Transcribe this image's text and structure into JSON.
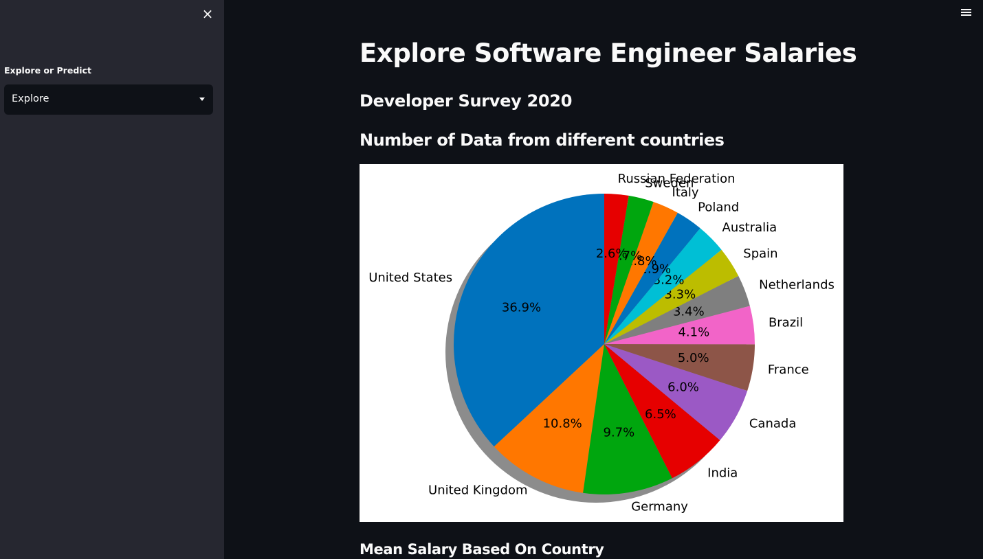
{
  "sidebar": {
    "label": "Explore or Predict",
    "select": {
      "value": "Explore"
    },
    "close_icon": "×"
  },
  "main": {
    "title": "Explore Software Engineer Salaries",
    "subtitle": "Developer Survey 2020",
    "chart_heading": "Number of Data from different countries",
    "next_heading": "Mean Salary Based On Country"
  },
  "chart_data": {
    "type": "pie",
    "title": "",
    "start_angle_deg": 90,
    "direction": "counterclockwise",
    "shadow": true,
    "slices": [
      {
        "label": "United States",
        "value": 36.9,
        "pct": "36.9%",
        "color": "#0072bd"
      },
      {
        "label": "United Kingdom",
        "value": 10.8,
        "pct": "10.8%",
        "color": "#ff7700"
      },
      {
        "label": "Germany",
        "value": 9.7,
        "pct": "9.7%",
        "color": "#00a60e"
      },
      {
        "label": "India",
        "value": 6.5,
        "pct": "6.5%",
        "color": "#e60000"
      },
      {
        "label": "Canada",
        "value": 6.0,
        "pct": "6.0%",
        "color": "#9b59c5"
      },
      {
        "label": "France",
        "value": 5.0,
        "pct": "5.0%",
        "color": "#8d5548"
      },
      {
        "label": "Brazil",
        "value": 4.1,
        "pct": "4.1%",
        "color": "#f264c8"
      },
      {
        "label": "Netherlands",
        "value": 3.4,
        "pct": "3.4%",
        "color": "#7f7f7f"
      },
      {
        "label": "Spain",
        "value": 3.3,
        "pct": "3.3%",
        "color": "#bcbd00"
      },
      {
        "label": "Australia",
        "value": 3.2,
        "pct": "3.2%",
        "color": "#00bfd5"
      },
      {
        "label": "Poland",
        "value": 2.9,
        "pct": "2.9%",
        "color": "#0072bd"
      },
      {
        "label": "Italy",
        "value": 2.8,
        "pct": "2.8%",
        "color": "#ff7700"
      },
      {
        "label": "Sweden",
        "value": 2.7,
        "pct": "2.7%",
        "color": "#00a60e"
      },
      {
        "label": "Russian Federation",
        "value": 2.6,
        "pct": "2.6%",
        "color": "#e60000"
      }
    ]
  }
}
